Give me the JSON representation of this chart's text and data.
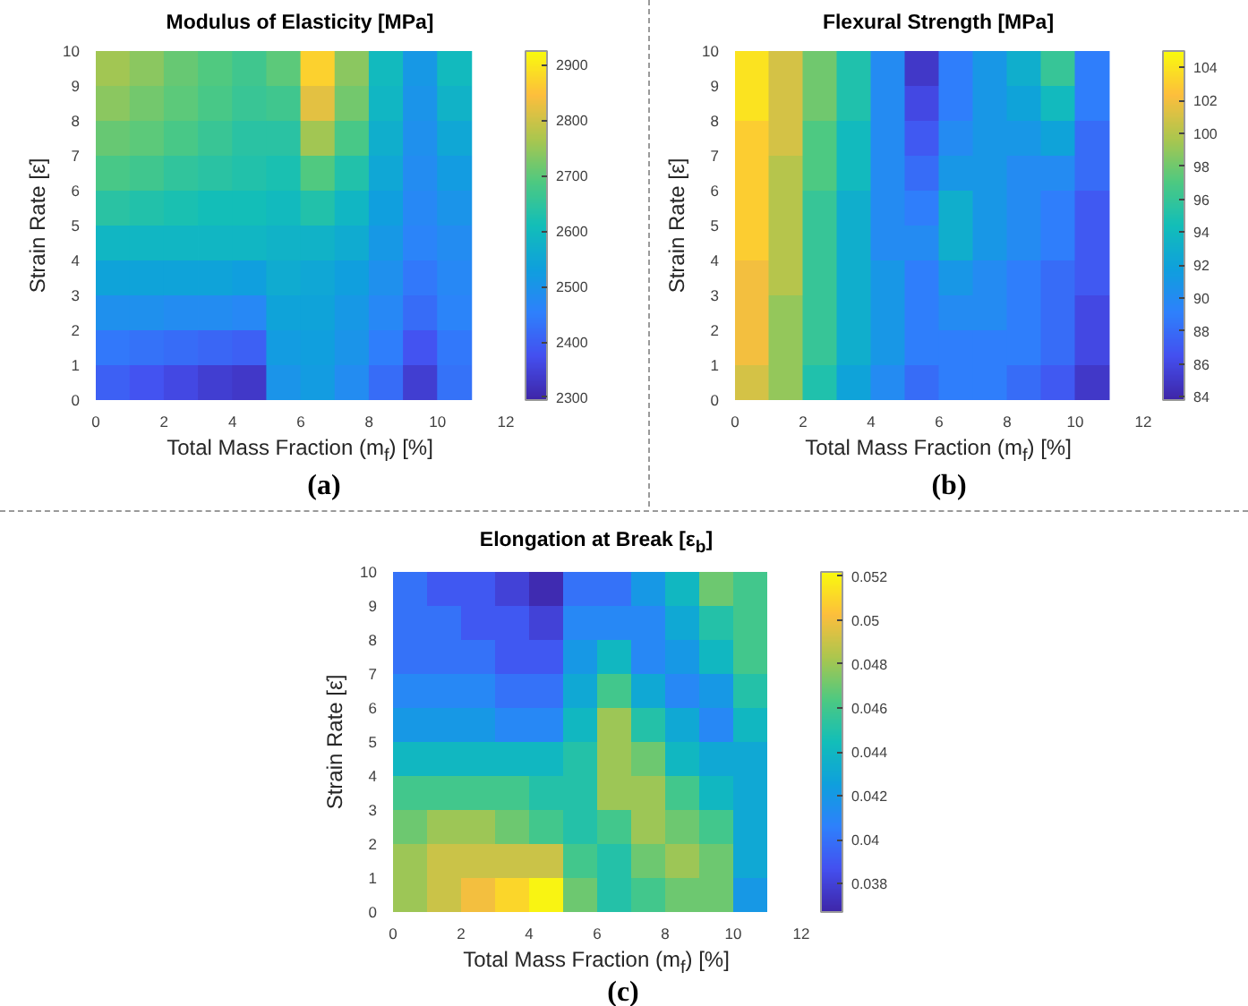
{
  "chart_data": [
    {
      "type": "scatter",
      "marker": "square",
      "title": "Modulus of Elasticity [MPa]",
      "xlabel": "Total Mass Fraction (m$_{f}$) [%]",
      "ylabel": "Strain Rate [ε̇]",
      "annotations": [
        "(a)"
      ],
      "x": [
        0.5,
        1.5,
        2.5,
        3.5,
        4.5,
        5.5,
        6.5,
        7.5,
        8.5,
        9.5,
        10.5,
        0.5,
        1.5,
        2.5,
        3.5,
        4.5,
        5.5,
        6.5,
        7.5,
        8.5,
        9.5,
        10.5,
        0.5,
        1.5,
        2.5,
        3.5,
        4.5,
        5.5,
        6.5,
        7.5,
        8.5,
        9.5,
        10.5,
        0.5,
        1.5,
        2.5,
        3.5,
        4.5,
        5.5,
        6.5,
        7.5,
        8.5,
        9.5,
        10.5,
        0.5,
        1.5,
        2.5,
        3.5,
        4.5,
        5.5,
        6.5,
        7.5,
        8.5,
        9.5,
        10.5,
        0.5,
        1.5,
        2.5,
        3.5,
        4.5,
        5.5,
        6.5,
        7.5,
        8.5,
        9.5,
        10.5,
        0.5,
        1.5,
        2.5,
        3.5,
        4.5,
        5.5,
        6.5,
        7.5,
        8.5,
        9.5,
        10.5,
        0.5,
        1.5,
        2.5,
        3.5,
        4.5,
        5.5,
        6.5,
        7.5,
        8.5,
        9.5,
        10.5,
        0.5,
        1.5,
        2.5,
        3.5,
        4.5,
        5.5,
        6.5,
        7.5,
        8.5,
        9.5,
        10.5,
        0.5,
        1.5,
        2.5,
        3.5,
        4.5,
        5.5,
        6.5,
        7.5,
        8.5,
        9.5,
        10.5
      ],
      "values": [
        9.5,
        9.5,
        9.5,
        9.5,
        9.5,
        9.5,
        9.5,
        9.5,
        9.5,
        9.5,
        9.5,
        8.5,
        8.5,
        8.5,
        8.5,
        8.5,
        8.5,
        8.5,
        8.5,
        8.5,
        8.5,
        8.5,
        7.5,
        7.5,
        7.5,
        7.5,
        7.5,
        7.5,
        7.5,
        7.5,
        7.5,
        7.5,
        7.5,
        6.5,
        6.5,
        6.5,
        6.5,
        6.5,
        6.5,
        6.5,
        6.5,
        6.5,
        6.5,
        6.5,
        5.5,
        5.5,
        5.5,
        5.5,
        5.5,
        5.5,
        5.5,
        5.5,
        5.5,
        5.5,
        5.5,
        4.5,
        4.5,
        4.5,
        4.5,
        4.5,
        4.5,
        4.5,
        4.5,
        4.5,
        4.5,
        4.5,
        3.5,
        3.5,
        3.5,
        3.5,
        3.5,
        3.5,
        3.5,
        3.5,
        3.5,
        3.5,
        3.5,
        2.5,
        2.5,
        2.5,
        2.5,
        2.5,
        2.5,
        2.5,
        2.5,
        2.5,
        2.5,
        2.5,
        1.5,
        1.5,
        1.5,
        1.5,
        1.5,
        1.5,
        1.5,
        1.5,
        1.5,
        1.5,
        1.5,
        0.5,
        0.5,
        0.5,
        0.5,
        0.5,
        0.5,
        0.5,
        0.5,
        0.5,
        0.5,
        0.5
      ],
      "cvalues": [
        2760,
        2740,
        2710,
        2690,
        2670,
        2700,
        2870,
        2740,
        2600,
        2510,
        2600,
        2740,
        2720,
        2700,
        2680,
        2660,
        2670,
        2820,
        2720,
        2590,
        2500,
        2580,
        2710,
        2700,
        2680,
        2660,
        2640,
        2640,
        2760,
        2680,
        2570,
        2490,
        2550,
        2680,
        2670,
        2650,
        2640,
        2630,
        2620,
        2690,
        2630,
        2550,
        2480,
        2520,
        2640,
        2630,
        2620,
        2610,
        2610,
        2600,
        2630,
        2590,
        2530,
        2470,
        2500,
        2590,
        2590,
        2590,
        2590,
        2590,
        2580,
        2580,
        2560,
        2510,
        2460,
        2480,
        2540,
        2540,
        2540,
        2540,
        2530,
        2560,
        2550,
        2530,
        2490,
        2440,
        2470,
        2490,
        2490,
        2480,
        2480,
        2470,
        2540,
        2540,
        2510,
        2470,
        2420,
        2460,
        2440,
        2430,
        2420,
        2410,
        2400,
        2520,
        2530,
        2500,
        2450,
        2380,
        2440,
        2400,
        2380,
        2360,
        2340,
        2330,
        2500,
        2520,
        2480,
        2420,
        2340,
        2430
      ],
      "xlim": [
        0,
        12
      ],
      "xticks": [
        0,
        2,
        4,
        6,
        8,
        10,
        12
      ],
      "ylim": [
        0,
        10
      ],
      "yticks": [
        0,
        1,
        2,
        3,
        4,
        5,
        6,
        7,
        8,
        9,
        10
      ],
      "clim": [
        2295,
        2925
      ],
      "cticks": [
        2300,
        2400,
        2500,
        2600,
        2700,
        2800,
        2900
      ]
    },
    {
      "type": "scatter",
      "marker": "square",
      "title": "Flexural Strength [MPa]",
      "xlabel": "Total Mass Fraction (m$_{f}$) [%]",
      "ylabel": "Strain Rate [ε̇]",
      "annotations": [
        "(b)"
      ],
      "x": [
        0.5,
        1.5,
        2.5,
        3.5,
        4.5,
        5.5,
        6.5,
        7.5,
        8.5,
        9.5,
        10.5,
        0.5,
        1.5,
        2.5,
        3.5,
        4.5,
        5.5,
        6.5,
        7.5,
        8.5,
        9.5,
        10.5,
        0.5,
        1.5,
        2.5,
        3.5,
        4.5,
        5.5,
        6.5,
        7.5,
        8.5,
        9.5,
        10.5,
        0.5,
        1.5,
        2.5,
        3.5,
        4.5,
        5.5,
        6.5,
        7.5,
        8.5,
        9.5,
        10.5,
        0.5,
        1.5,
        2.5,
        3.5,
        4.5,
        5.5,
        6.5,
        7.5,
        8.5,
        9.5,
        10.5,
        0.5,
        1.5,
        2.5,
        3.5,
        4.5,
        5.5,
        6.5,
        7.5,
        8.5,
        9.5,
        10.5,
        0.5,
        1.5,
        2.5,
        3.5,
        4.5,
        5.5,
        6.5,
        7.5,
        8.5,
        9.5,
        10.5,
        0.5,
        1.5,
        2.5,
        3.5,
        4.5,
        5.5,
        6.5,
        7.5,
        8.5,
        9.5,
        10.5,
        0.5,
        1.5,
        2.5,
        3.5,
        4.5,
        5.5,
        6.5,
        7.5,
        8.5,
        9.5,
        10.5,
        0.5,
        1.5,
        2.5,
        3.5,
        4.5,
        5.5,
        6.5,
        7.5,
        8.5,
        9.5,
        10.5
      ],
      "values": [
        9.5,
        9.5,
        9.5,
        9.5,
        9.5,
        9.5,
        9.5,
        9.5,
        9.5,
        9.5,
        9.5,
        8.5,
        8.5,
        8.5,
        8.5,
        8.5,
        8.5,
        8.5,
        8.5,
        8.5,
        8.5,
        8.5,
        7.5,
        7.5,
        7.5,
        7.5,
        7.5,
        7.5,
        7.5,
        7.5,
        7.5,
        7.5,
        7.5,
        6.5,
        6.5,
        6.5,
        6.5,
        6.5,
        6.5,
        6.5,
        6.5,
        6.5,
        6.5,
        6.5,
        5.5,
        5.5,
        5.5,
        5.5,
        5.5,
        5.5,
        5.5,
        5.5,
        5.5,
        5.5,
        5.5,
        4.5,
        4.5,
        4.5,
        4.5,
        4.5,
        4.5,
        4.5,
        4.5,
        4.5,
        4.5,
        4.5,
        3.5,
        3.5,
        3.5,
        3.5,
        3.5,
        3.5,
        3.5,
        3.5,
        3.5,
        3.5,
        3.5,
        2.5,
        2.5,
        2.5,
        2.5,
        2.5,
        2.5,
        2.5,
        2.5,
        2.5,
        2.5,
        2.5,
        1.5,
        1.5,
        1.5,
        1.5,
        1.5,
        1.5,
        1.5,
        1.5,
        1.5,
        1.5,
        1.5,
        0.5,
        0.5,
        0.5,
        0.5,
        0.5,
        0.5,
        0.5,
        0.5,
        0.5,
        0.5,
        0.5
      ],
      "cvalues": [
        104,
        101,
        98,
        95,
        90,
        85,
        89,
        91,
        93,
        96,
        89,
        104,
        101,
        98,
        95,
        90,
        86,
        89,
        91,
        92,
        94,
        89,
        103,
        101,
        97,
        94,
        90,
        87,
        90,
        91,
        91,
        92,
        88,
        103,
        100,
        97,
        94,
        90,
        88,
        91,
        91,
        90,
        90,
        88,
        103,
        100,
        96,
        93,
        90,
        89,
        93,
        91,
        90,
        89,
        87,
        103,
        100,
        96,
        93,
        90,
        90,
        93,
        91,
        90,
        89,
        87,
        102,
        100,
        96,
        93,
        91,
        89,
        91,
        90,
        89,
        88,
        87,
        102,
        99,
        96,
        93,
        91,
        89,
        90,
        90,
        89,
        88,
        86,
        102,
        99,
        96,
        93,
        91,
        89,
        89,
        89,
        89,
        88,
        86,
        101,
        99,
        95,
        92,
        90,
        88,
        89,
        89,
        88,
        87,
        85
      ],
      "xlim": [
        0,
        12
      ],
      "xticks": [
        0,
        2,
        4,
        6,
        8,
        10,
        12
      ],
      "ylim": [
        0,
        10
      ],
      "yticks": [
        0,
        1,
        2,
        3,
        4,
        5,
        6,
        7,
        8,
        9,
        10
      ],
      "clim": [
        83.8,
        105
      ],
      "cticks": [
        84,
        86,
        88,
        90,
        92,
        94,
        96,
        98,
        100,
        102,
        104
      ]
    },
    {
      "type": "scatter",
      "marker": "square",
      "title": "Elongation at Break [ε$_{b}$]",
      "xlabel": "Total Mass Fraction (m$_{f}$) [%]",
      "ylabel": "Strain Rate [ε̇]",
      "annotations": [
        "(c)"
      ],
      "x": [
        0.5,
        1.5,
        2.5,
        3.5,
        4.5,
        5.5,
        6.5,
        7.5,
        8.5,
        9.5,
        10.5,
        0.5,
        1.5,
        2.5,
        3.5,
        4.5,
        5.5,
        6.5,
        7.5,
        8.5,
        9.5,
        10.5,
        0.5,
        1.5,
        2.5,
        3.5,
        4.5,
        5.5,
        6.5,
        7.5,
        8.5,
        9.5,
        10.5,
        0.5,
        1.5,
        2.5,
        3.5,
        4.5,
        5.5,
        6.5,
        7.5,
        8.5,
        9.5,
        10.5,
        0.5,
        1.5,
        2.5,
        3.5,
        4.5,
        5.5,
        6.5,
        7.5,
        8.5,
        9.5,
        10.5,
        0.5,
        1.5,
        2.5,
        3.5,
        4.5,
        5.5,
        6.5,
        7.5,
        8.5,
        9.5,
        10.5,
        0.5,
        1.5,
        2.5,
        3.5,
        4.5,
        5.5,
        6.5,
        7.5,
        8.5,
        9.5,
        10.5,
        0.5,
        1.5,
        2.5,
        3.5,
        4.5,
        5.5,
        6.5,
        7.5,
        8.5,
        9.5,
        10.5,
        0.5,
        1.5,
        2.5,
        3.5,
        4.5,
        5.5,
        6.5,
        7.5,
        8.5,
        9.5,
        10.5,
        0.5,
        1.5,
        2.5,
        3.5,
        4.5,
        5.5,
        6.5,
        7.5,
        8.5,
        9.5,
        10.5
      ],
      "values": [
        9.5,
        9.5,
        9.5,
        9.5,
        9.5,
        9.5,
        9.5,
        9.5,
        9.5,
        9.5,
        9.5,
        8.5,
        8.5,
        8.5,
        8.5,
        8.5,
        8.5,
        8.5,
        8.5,
        8.5,
        8.5,
        8.5,
        7.5,
        7.5,
        7.5,
        7.5,
        7.5,
        7.5,
        7.5,
        7.5,
        7.5,
        7.5,
        7.5,
        6.5,
        6.5,
        6.5,
        6.5,
        6.5,
        6.5,
        6.5,
        6.5,
        6.5,
        6.5,
        6.5,
        5.5,
        5.5,
        5.5,
        5.5,
        5.5,
        5.5,
        5.5,
        5.5,
        5.5,
        5.5,
        5.5,
        4.5,
        4.5,
        4.5,
        4.5,
        4.5,
        4.5,
        4.5,
        4.5,
        4.5,
        4.5,
        4.5,
        3.5,
        3.5,
        3.5,
        3.5,
        3.5,
        3.5,
        3.5,
        3.5,
        3.5,
        3.5,
        3.5,
        2.5,
        2.5,
        2.5,
        2.5,
        2.5,
        2.5,
        2.5,
        2.5,
        2.5,
        2.5,
        2.5,
        1.5,
        1.5,
        1.5,
        1.5,
        1.5,
        1.5,
        1.5,
        1.5,
        1.5,
        1.5,
        1.5,
        0.5,
        0.5,
        0.5,
        0.5,
        0.5,
        0.5,
        0.5,
        0.5,
        0.5,
        0.5,
        0.5
      ],
      "cvalues": [
        0.04,
        0.039,
        0.039,
        0.038,
        0.037,
        0.04,
        0.04,
        0.042,
        0.044,
        0.047,
        0.046,
        0.04,
        0.04,
        0.039,
        0.039,
        0.038,
        0.041,
        0.041,
        0.041,
        0.043,
        0.045,
        0.046,
        0.04,
        0.04,
        0.04,
        0.039,
        0.039,
        0.042,
        0.044,
        0.041,
        0.042,
        0.044,
        0.046,
        0.041,
        0.041,
        0.041,
        0.04,
        0.04,
        0.043,
        0.046,
        0.043,
        0.041,
        0.042,
        0.045,
        0.042,
        0.042,
        0.042,
        0.041,
        0.041,
        0.044,
        0.048,
        0.045,
        0.043,
        0.041,
        0.044,
        0.044,
        0.044,
        0.044,
        0.044,
        0.044,
        0.045,
        0.048,
        0.047,
        0.044,
        0.043,
        0.043,
        0.046,
        0.046,
        0.046,
        0.046,
        0.045,
        0.045,
        0.048,
        0.048,
        0.046,
        0.044,
        0.043,
        0.047,
        0.048,
        0.048,
        0.047,
        0.046,
        0.045,
        0.046,
        0.048,
        0.047,
        0.046,
        0.043,
        0.048,
        0.049,
        0.049,
        0.049,
        0.049,
        0.046,
        0.045,
        0.047,
        0.048,
        0.047,
        0.043,
        0.048,
        0.049,
        0.05,
        0.051,
        0.052,
        0.047,
        0.045,
        0.046,
        0.047,
        0.047,
        0.042
      ],
      "xlim": [
        0,
        12
      ],
      "xticks": [
        0,
        2,
        4,
        6,
        8,
        10,
        12
      ],
      "ylim": [
        0,
        10
      ],
      "yticks": [
        0,
        1,
        2,
        3,
        4,
        5,
        6,
        7,
        8,
        9,
        10
      ],
      "clim": [
        0.0367,
        0.0522
      ],
      "cticks": [
        0.038,
        0.04,
        0.042,
        0.044,
        0.046,
        0.048,
        0.05,
        0.052
      ]
    }
  ]
}
